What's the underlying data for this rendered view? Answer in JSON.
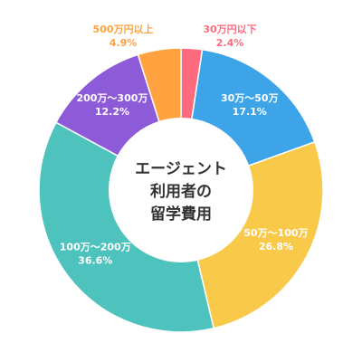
{
  "chart_data": {
    "type": "pie",
    "donut": true,
    "title_lines": [
      "エージェント",
      "利用者の",
      "留学費用"
    ],
    "slices": [
      {
        "label": "30万円以下",
        "pct_label": "2.4%",
        "value": 2.4,
        "color": "#FF6B7E",
        "label_color": "#FF6B7E",
        "label_outside": true
      },
      {
        "label": "30万～50万",
        "pct_label": "17.1%",
        "value": 17.1,
        "color": "#3DA4E8",
        "label_color": "#FFFFFF",
        "label_outside": false
      },
      {
        "label": "50万～100万",
        "pct_label": "26.8%",
        "value": 26.8,
        "color": "#F9C94A",
        "label_color": "#FFFFFF",
        "label_outside": false
      },
      {
        "label": "100万～200万",
        "pct_label": "36.6%",
        "value": 36.6,
        "color": "#4EC3BE",
        "label_color": "#FFFFFF",
        "label_outside": false
      },
      {
        "label": "200万～300万",
        "pct_label": "12.2%",
        "value": 12.2,
        "color": "#8E5BD8",
        "label_color": "#FFFFFF",
        "label_outside": false
      },
      {
        "label": "500万円以上",
        "pct_label": "4.9%",
        "value": 4.9,
        "color": "#FFA23F",
        "label_color": "#FFA23F",
        "label_outside": true
      }
    ]
  }
}
